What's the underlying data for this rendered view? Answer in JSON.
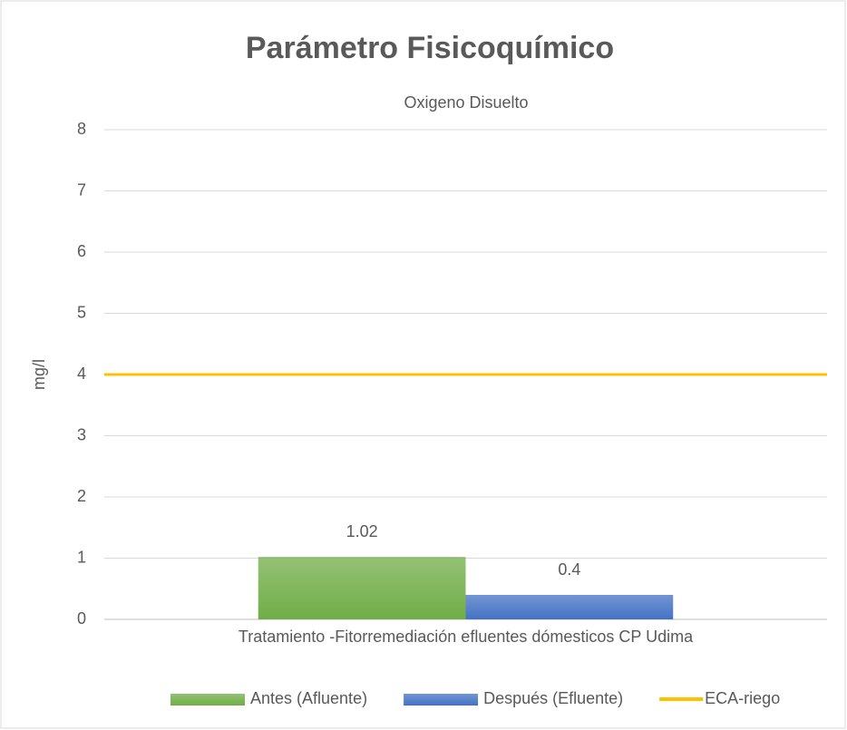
{
  "chart_data": {
    "type": "bar",
    "title": "Parámetro Fisicoquímico",
    "subtitle": "Oxigeno Disuelto",
    "y_label": "mg/l",
    "categories": [
      "Tratamiento -Fitorremediación efluentes dómesticos CP Udima"
    ],
    "series": [
      {
        "name": "Antes (Afluente)",
        "color": "#70ad47",
        "values": [
          1.02
        ]
      },
      {
        "name": "Después (Efluente)",
        "color": "#4472c4",
        "values": [
          0.4
        ]
      }
    ],
    "lines": [
      {
        "name": "ECA-riego",
        "color": "#ffc000",
        "value": 4
      }
    ],
    "ylim": [
      0,
      8
    ],
    "yticks": [
      0,
      1,
      2,
      3,
      4,
      5,
      6,
      7,
      8
    ],
    "grid": true,
    "legend": "bottom"
  }
}
